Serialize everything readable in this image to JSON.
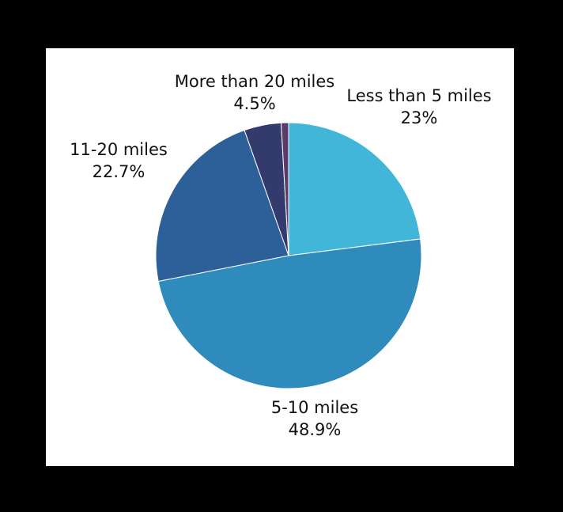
{
  "chart_data": {
    "type": "pie",
    "categories": [
      "Less than 5 miles",
      "5-10 miles",
      "11-20 miles",
      "More than 20 miles",
      null
    ],
    "values": [
      23,
      48.9,
      22.7,
      4.5,
      0.9
    ],
    "value_labels": [
      "23%",
      "48.9%",
      "22.7%",
      "4.5%",
      null
    ],
    "colors": [
      "#41b6d8",
      "#2e8bbb",
      "#2d5f99",
      "#333a6e",
      "#5b3a6c"
    ]
  }
}
